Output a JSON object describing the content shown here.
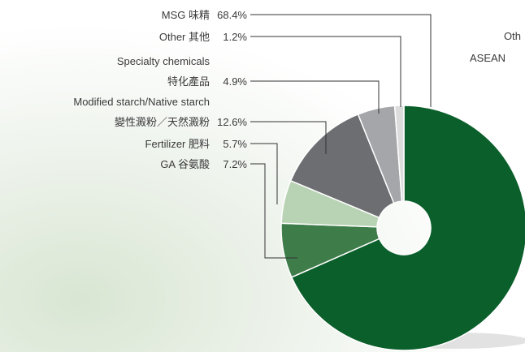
{
  "chart_data": {
    "type": "donut",
    "series": [
      {
        "name": "MSG 味精",
        "color": "#0b5f2b"
      },
      {
        "name": "Other 其他",
        "color": "#dcdcdc"
      },
      {
        "name": "Specialty chemicals\n特化產品",
        "color": "#a5a6a9"
      },
      {
        "name": "Modified starch/Native starch\n變性澱粉／天然澱粉",
        "color": "#6d6e72"
      },
      {
        "name": "Fertilizer 肥料",
        "color": "#b8d3b3"
      },
      {
        "name": "GA 谷氨酸",
        "color": "#3e7d49"
      }
    ],
    "values": [
      68.4,
      1.2,
      4.9,
      12.6,
      5.7,
      7.2
    ],
    "value_labels": [
      "68.4%",
      "1.2%",
      "4.9%",
      "12.6%",
      "5.7%",
      "7.2%"
    ],
    "annotations": [
      "Oth",
      "ASEAN"
    ]
  }
}
